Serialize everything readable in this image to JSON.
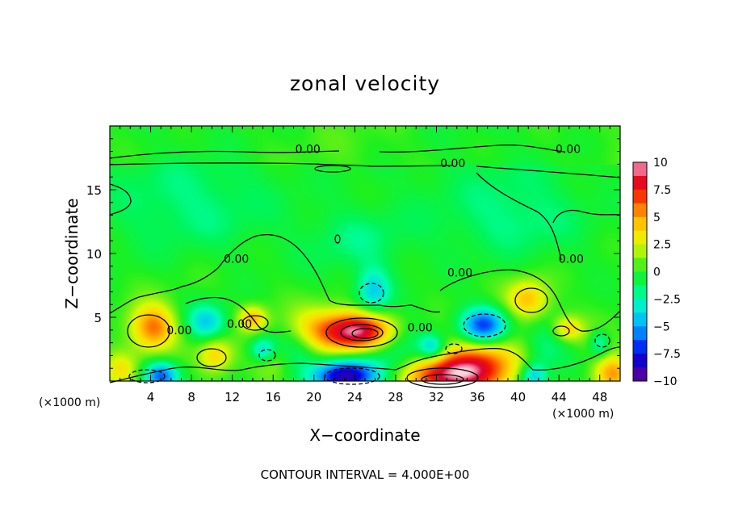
{
  "chart_data": {
    "type": "heatmap",
    "title": "zonal velocity",
    "xlabel": "X−coordinate",
    "ylabel": "Z−coordinate",
    "x_unit_left": "(×1000 m)",
    "x_unit_right": "(×1000 m)",
    "xlim": [
      0,
      50
    ],
    "ylim": [
      0,
      20
    ],
    "x_ticks": [
      4,
      8,
      12,
      16,
      20,
      24,
      28,
      32,
      36,
      40,
      44,
      48
    ],
    "x_tick_labels": [
      "4",
      "8",
      "12",
      "16",
      "20",
      "24",
      "28",
      "32",
      "36",
      "40",
      "44",
      "48"
    ],
    "y_ticks": [
      5,
      10,
      15
    ],
    "y_tick_labels": [
      "5",
      "10",
      "15"
    ],
    "colorbar": {
      "range": [
        -10,
        10
      ],
      "ticks": [
        10,
        7.5,
        5,
        2.5,
        0,
        -2.5,
        -5,
        -7.5,
        -10
      ],
      "tick_labels": [
        "10",
        "7.5",
        "5",
        "2.5",
        "0",
        "−2.5",
        "−5",
        "−7.5",
        "−10"
      ]
    },
    "contour_labels": [
      {
        "text": "0.00",
        "x": 19.4,
        "z": 18.2
      },
      {
        "text": "0.00",
        "x": 44.9,
        "z": 18.2
      },
      {
        "text": "0.00",
        "x": 33.6,
        "z": 17.1
      },
      {
        "text": "0.00",
        "x": 12.4,
        "z": 9.6
      },
      {
        "text": "0.00",
        "x": 34.3,
        "z": 8.5
      },
      {
        "text": "0.00",
        "x": 45.2,
        "z": 9.6
      },
      {
        "text": "0.00",
        "x": 6.8,
        "z": 4.0
      },
      {
        "text": "0.00",
        "x": 12.7,
        "z": 4.5
      },
      {
        "text": "0.00",
        "x": 30.4,
        "z": 4.2
      }
    ],
    "features": [
      {
        "x": 4.2,
        "z": 4.2,
        "value": 6,
        "sx": 1.6,
        "sz": 1.3
      },
      {
        "x": 10.4,
        "z": 2.0,
        "value": 4,
        "sx": 1.2,
        "sz": 1.0
      },
      {
        "x": 14.0,
        "z": 4.9,
        "value": 4.5,
        "sx": 1.0,
        "sz": 0.7
      },
      {
        "x": 24.3,
        "z": 3.9,
        "value": 10,
        "sx": 2.5,
        "sz": 1.1
      },
      {
        "x": 20.0,
        "z": 4.0,
        "value": 3,
        "sx": 2.0,
        "sz": 1.3
      },
      {
        "x": 33.5,
        "z": 0.5,
        "value": 9,
        "sx": 3.5,
        "sz": 1.2
      },
      {
        "x": 37.0,
        "z": 2.0,
        "value": 3.5,
        "sx": 3.0,
        "sz": 1.3
      },
      {
        "x": 41.0,
        "z": 6.4,
        "value": 4.5,
        "sx": 1.5,
        "sz": 1.1
      },
      {
        "x": 44.8,
        "z": 4.1,
        "value": 4,
        "sx": 1.0,
        "sz": 0.7
      },
      {
        "x": 49.2,
        "z": 0.6,
        "value": 5,
        "sx": 1.3,
        "sz": 1.0
      },
      {
        "x": 1.0,
        "z": 0.9,
        "value": 3,
        "sx": 1.2,
        "sz": 1.0
      },
      {
        "x": 16.0,
        "z": 1.8,
        "value": 2.5,
        "sx": 1.6,
        "sz": 1.0
      },
      {
        "x": 48.0,
        "z": 3.2,
        "value": 2,
        "sx": 1.4,
        "sz": 1.0
      },
      {
        "x": 5.0,
        "z": 0.4,
        "value": -6,
        "sx": 1.2,
        "sz": 0.8
      },
      {
        "x": 23.0,
        "z": 0.4,
        "value": -9,
        "sx": 2.2,
        "sz": 0.9
      },
      {
        "x": 36.6,
        "z": 4.3,
        "value": -7,
        "sx": 1.6,
        "sz": 1.0
      },
      {
        "x": 25.8,
        "z": 7.0,
        "value": -4,
        "sx": 1.2,
        "sz": 1.3
      },
      {
        "x": 31.6,
        "z": 2.6,
        "value": -4,
        "sx": 0.9,
        "sz": 0.7
      },
      {
        "x": 15.0,
        "z": 2.4,
        "value": -4.5,
        "sx": 0.9,
        "sz": 0.7
      },
      {
        "x": 41.5,
        "z": 0.4,
        "value": -4,
        "sx": 0.9,
        "sz": 0.7
      },
      {
        "x": 48.0,
        "z": 3.0,
        "value": -4.5,
        "sx": 0.8,
        "sz": 0.8
      },
      {
        "x": 9.5,
        "z": 4.6,
        "value": -4,
        "sx": 1.4,
        "sz": 1.0
      },
      {
        "x": 18.0,
        "z": 2.3,
        "value": -2.5,
        "sx": 1.6,
        "sz": 1.2
      },
      {
        "x": 28.0,
        "z": 2.4,
        "value": -3,
        "sx": 2.4,
        "sz": 1.6
      },
      {
        "x": 42.5,
        "z": 2.5,
        "value": -2.5,
        "sx": 1.6,
        "sz": 1.4
      },
      {
        "x": 24.0,
        "z": 11.0,
        "value": -1.5,
        "sx": 3.5,
        "sz": 1.8
      },
      {
        "x": 8.0,
        "z": 14.0,
        "value": -1,
        "sx": 5.0,
        "sz": 2.0
      },
      {
        "x": 40.0,
        "z": 13.0,
        "value": -1.2,
        "sx": 4.0,
        "sz": 2.0
      }
    ],
    "footer": "CONTOUR INTERVAL = 4.000E+00"
  }
}
